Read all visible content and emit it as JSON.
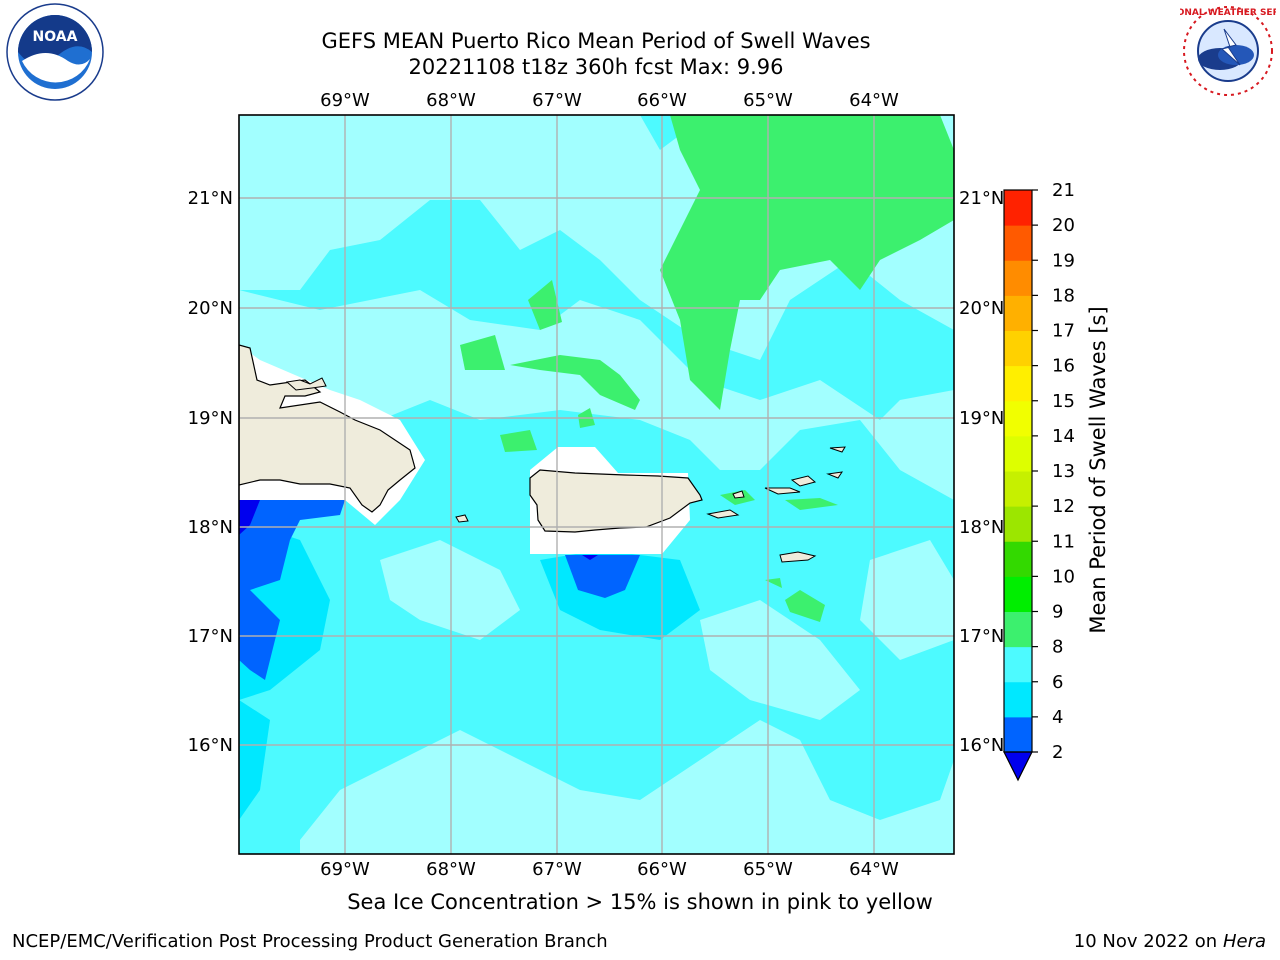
{
  "header": {
    "title_line1": "GEFS MEAN Puerto Rico Mean Period of Swell Waves",
    "title_line2": "20221108 t18z 360h fcst   Max: 9.96"
  },
  "logos": {
    "left": "NOAA",
    "right": "NATIONAL WEATHER SERVICE"
  },
  "map": {
    "longitude_labels": [
      "69°W",
      "68°W",
      "67°W",
      "66°W",
      "65°W",
      "64°W"
    ],
    "latitude_labels": [
      "21°N",
      "20°N",
      "19°N",
      "18°N",
      "17°N",
      "16°N"
    ],
    "land_color": "#efecdc",
    "ocean_color": "#4dfaff"
  },
  "colorbar": {
    "label": "Mean Period of Swell Waves [s]",
    "ticks": [
      "2",
      "4",
      "6",
      "8",
      "9",
      "10",
      "11",
      "12",
      "13",
      "14",
      "15",
      "16",
      "17",
      "18",
      "19",
      "20",
      "21"
    ],
    "colors": [
      "#0064ff",
      "#00e8ff",
      "#4dfaff",
      "#a2ffff",
      "#3cf06e",
      "#00ee00",
      "#33d900",
      "#9ce600",
      "#c6f000",
      "#ddff00",
      "#f1ff00",
      "#ffef00",
      "#ffd100",
      "#ffb000",
      "#ff8c00",
      "#ff5a00",
      "#ff2200",
      "#ff0000"
    ],
    "under_color": "#0000ee"
  },
  "footer": {
    "note": "Sea Ice Concentration > 15% is shown in pink to yellow",
    "credit_left": "NCEP/EMC/Verification Post Processing Product Generation Branch",
    "credit_date": "10 Nov 2022 on",
    "credit_host": "Hera"
  }
}
